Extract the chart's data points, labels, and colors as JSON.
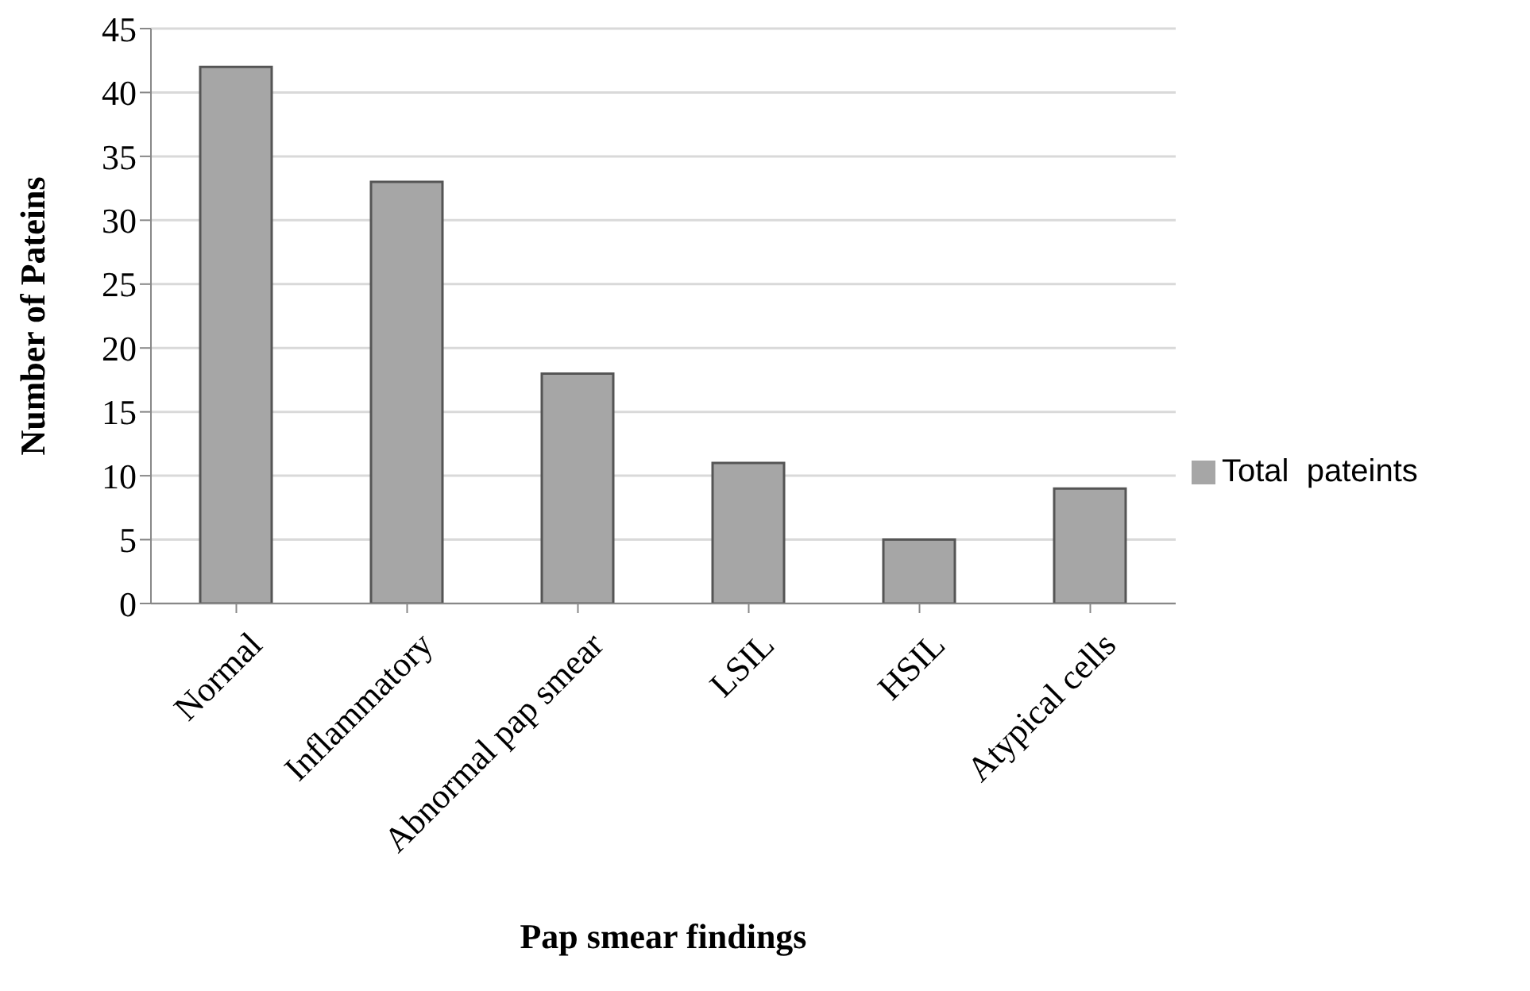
{
  "chart_data": {
    "type": "bar",
    "xlabel": "Pap smear findings",
    "ylabel": "Number of Pateins",
    "categories": [
      "Normal",
      "Inflammatory",
      "Abnormal pap smear",
      "LSIL",
      "HSIL",
      "Atypical cells"
    ],
    "series": [
      {
        "name": "Total  pateints",
        "color": "#a6a6a6",
        "values": [
          42,
          33,
          18,
          11,
          5,
          9
        ]
      }
    ],
    "ylim": [
      0,
      45
    ],
    "yticks": [
      0,
      5,
      10,
      15,
      20,
      25,
      30,
      35,
      40,
      45
    ],
    "grid": "y",
    "legend": "right"
  }
}
